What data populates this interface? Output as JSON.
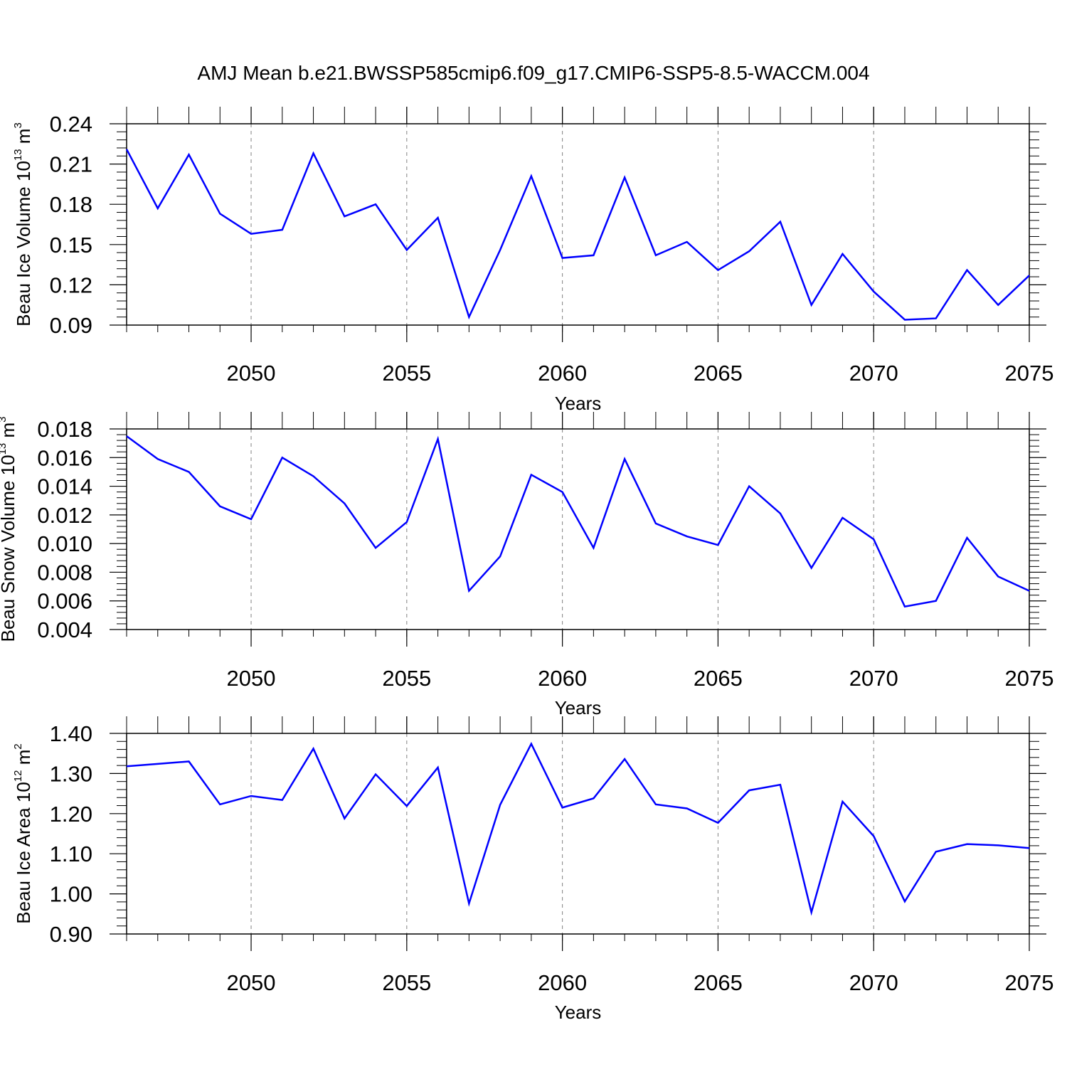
{
  "title": "AMJ Mean b.e21.BWSSP585cmip6.f09_g17.CMIP6-SSP5-8.5-WACCM.004",
  "colors": {
    "line": "#0000ff",
    "axis": "#000000",
    "grid": "#808080"
  },
  "chart_data": [
    {
      "type": "line",
      "ylabel": {
        "text": "Beau Ice Volume 10",
        "exp": "13",
        "unit": " m",
        "unit_exp": "3"
      },
      "xlabel": "Years",
      "xlim": [
        2046,
        2075
      ],
      "ylim": [
        0.09,
        0.24
      ],
      "yticks": [
        0.09,
        0.12,
        0.15,
        0.18,
        0.21,
        0.24
      ],
      "ytick_labels": [
        "0.09",
        "0.12",
        "0.15",
        "0.18",
        "0.21",
        "0.24"
      ],
      "xticks": [
        2050,
        2055,
        2060,
        2065,
        2070,
        2075
      ],
      "xtick_labels": [
        "2050",
        "2055",
        "2060",
        "2065",
        "2070",
        "2075"
      ],
      "grid": "vertical dashed at major x ticks",
      "x": [
        2046,
        2047,
        2048,
        2049,
        2050,
        2051,
        2052,
        2053,
        2054,
        2055,
        2056,
        2057,
        2058,
        2059,
        2060,
        2061,
        2062,
        2063,
        2064,
        2065,
        2066,
        2067,
        2068,
        2069,
        2070,
        2071,
        2072,
        2073,
        2074,
        2075
      ],
      "values": [
        0.221,
        0.177,
        0.217,
        0.173,
        0.158,
        0.161,
        0.218,
        0.171,
        0.18,
        0.146,
        0.17,
        0.096,
        0.146,
        0.201,
        0.14,
        0.142,
        0.2,
        0.142,
        0.152,
        0.131,
        0.145,
        0.167,
        0.105,
        0.143,
        0.115,
        0.094,
        0.095,
        0.131,
        0.105,
        0.127
      ]
    },
    {
      "type": "line",
      "ylabel": {
        "text": "Beau Snow Volume 10",
        "exp": "13",
        "unit": " m",
        "unit_exp": "3"
      },
      "xlabel": "Years",
      "xlim": [
        2046,
        2075
      ],
      "ylim": [
        0.004,
        0.018
      ],
      "yticks": [
        0.004,
        0.006,
        0.008,
        0.01,
        0.012,
        0.014,
        0.016,
        0.018
      ],
      "ytick_labels": [
        "0.004",
        "0.006",
        "0.008",
        "0.010",
        "0.012",
        "0.014",
        "0.016",
        "0.018"
      ],
      "xticks": [
        2050,
        2055,
        2060,
        2065,
        2070,
        2075
      ],
      "xtick_labels": [
        "2050",
        "2055",
        "2060",
        "2065",
        "2070",
        "2075"
      ],
      "grid": "vertical dashed at major x ticks",
      "x": [
        2046,
        2047,
        2048,
        2049,
        2050,
        2051,
        2052,
        2053,
        2054,
        2055,
        2056,
        2057,
        2058,
        2059,
        2060,
        2061,
        2062,
        2063,
        2064,
        2065,
        2066,
        2067,
        2068,
        2069,
        2070,
        2071,
        2072,
        2073,
        2074,
        2075
      ],
      "values": [
        0.0175,
        0.0159,
        0.015,
        0.0126,
        0.0117,
        0.016,
        0.0147,
        0.0128,
        0.0097,
        0.0115,
        0.0173,
        0.0067,
        0.0091,
        0.0148,
        0.0136,
        0.0097,
        0.0159,
        0.0114,
        0.0105,
        0.0099,
        0.014,
        0.0121,
        0.0083,
        0.0118,
        0.0103,
        0.0056,
        0.006,
        0.0104,
        0.0077,
        0.0067
      ]
    },
    {
      "type": "line",
      "ylabel": {
        "text": "Beau Ice Area 10",
        "exp": "12",
        "unit": " m",
        "unit_exp": "2"
      },
      "xlabel": "Years",
      "xlim": [
        2046,
        2075
      ],
      "ylim": [
        0.9,
        1.4
      ],
      "yticks": [
        0.9,
        1.0,
        1.1,
        1.2,
        1.3,
        1.4
      ],
      "ytick_labels": [
        "0.90",
        "1.00",
        "1.10",
        "1.20",
        "1.30",
        "1.40"
      ],
      "xticks": [
        2050,
        2055,
        2060,
        2065,
        2070,
        2075
      ],
      "xtick_labels": [
        "2050",
        "2055",
        "2060",
        "2065",
        "2070",
        "2075"
      ],
      "grid": "vertical dashed at major x ticks",
      "x": [
        2046,
        2047,
        2048,
        2049,
        2050,
        2051,
        2052,
        2053,
        2054,
        2055,
        2056,
        2057,
        2058,
        2059,
        2060,
        2061,
        2062,
        2063,
        2064,
        2065,
        2066,
        2067,
        2068,
        2069,
        2070,
        2071,
        2072,
        2073,
        2074,
        2075
      ],
      "values": [
        1.318,
        1.324,
        1.33,
        1.223,
        1.244,
        1.234,
        1.362,
        1.188,
        1.298,
        1.219,
        1.315,
        0.976,
        1.222,
        1.374,
        1.215,
        1.238,
        1.336,
        1.223,
        1.213,
        1.177,
        1.258,
        1.272,
        0.954,
        1.23,
        1.144,
        0.981,
        1.105,
        1.124,
        1.121,
        1.114
      ]
    }
  ]
}
